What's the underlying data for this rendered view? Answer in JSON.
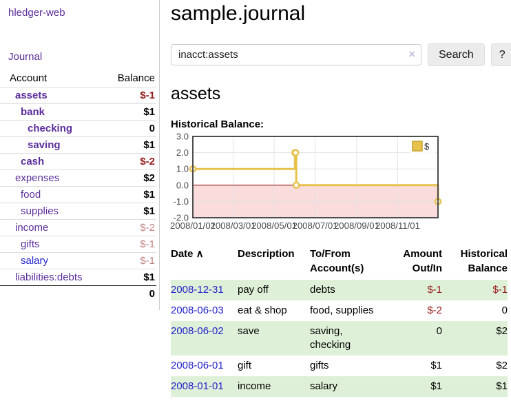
{
  "sidebar": {
    "app_title": "hledger-web",
    "journal_label": "Journal",
    "accounts_table": {
      "col_account": "Account",
      "col_balance": "Balance",
      "rows": [
        {
          "name": "assets",
          "balance": "$-1",
          "level": 1,
          "bold": true,
          "name_color": "purple",
          "bal_style": "neg"
        },
        {
          "name": "bank",
          "balance": "$1",
          "level": 2,
          "bold": true,
          "name_color": "purple",
          "bal_style": "pos"
        },
        {
          "name": "checking",
          "balance": "0",
          "level": 3,
          "bold": true,
          "name_color": "purple",
          "bal_style": "pos"
        },
        {
          "name": "saving",
          "balance": "$1",
          "level": 3,
          "bold": true,
          "name_color": "purple",
          "bal_style": "pos"
        },
        {
          "name": "cash",
          "balance": "$-2",
          "level": 2,
          "bold": true,
          "name_color": "purple",
          "bal_style": "neg"
        },
        {
          "name": "expenses",
          "balance": "$2",
          "level": 1,
          "bold": false,
          "name_color": "purple",
          "bal_style": "pos"
        },
        {
          "name": "food",
          "balance": "$1",
          "level": 2,
          "bold": false,
          "name_color": "purple",
          "bal_style": "pos"
        },
        {
          "name": "supplies",
          "balance": "$1",
          "level": 2,
          "bold": false,
          "name_color": "purple",
          "bal_style": "pos"
        },
        {
          "name": "income",
          "balance": "$-2",
          "level": 1,
          "bold": false,
          "name_color": "purple",
          "bal_style": "muted"
        },
        {
          "name": "gifts",
          "balance": "$-1",
          "level": 2,
          "bold": false,
          "name_color": "purple",
          "bal_style": "muted"
        },
        {
          "name": "salary",
          "balance": "$-1",
          "level": 2,
          "bold": false,
          "name_color": "blue",
          "bal_style": "muted"
        },
        {
          "name": "liabilities:debts",
          "balance": "$1",
          "level": 1,
          "bold": false,
          "name_color": "purple",
          "bal_style": "pos"
        }
      ],
      "total": "0"
    }
  },
  "main": {
    "title": "sample.journal",
    "search": {
      "value": "inacct:assets",
      "clear_icon": "×",
      "search_button_label": "Search",
      "help_button_label": "?"
    },
    "account_heading": "assets",
    "chart_heading": "Historical Balance:"
  },
  "chart_data": {
    "type": "line",
    "subtype": "step-with-markers",
    "title": "Historical Balance:",
    "legend": [
      {
        "label": "$",
        "color": "#e6c14c",
        "position": "top-right"
      }
    ],
    "ylim": [
      -2,
      3
    ],
    "y_ticks": [
      {
        "value": 3,
        "label": "3.0"
      },
      {
        "value": 2,
        "label": "2.0"
      },
      {
        "value": 1,
        "label": "1.0"
      },
      {
        "value": 0,
        "label": "0.0"
      },
      {
        "value": -1,
        "label": "-1.0"
      },
      {
        "value": -2,
        "label": "-2.0"
      }
    ],
    "x_range_days": 365,
    "x_ticks": [
      {
        "label": "2008/01/01",
        "day": 0
      },
      {
        "label": "2008/03/01",
        "day": 60
      },
      {
        "label": "2008/05/01",
        "day": 121
      },
      {
        "label": "2008/07/01",
        "day": 182
      },
      {
        "label": "2008/09/01",
        "day": 244
      },
      {
        "label": "2008/11/01",
        "day": 305
      }
    ],
    "points": [
      {
        "date": "2008-01-01",
        "day": 0,
        "value": 1
      },
      {
        "date": "2008-06-01",
        "day": 152,
        "value": 2
      },
      {
        "date": "2008-06-02",
        "day": 153,
        "value": 2
      },
      {
        "date": "2008-06-03",
        "day": 154,
        "value": 0
      },
      {
        "date": "2008-12-31",
        "day": 365,
        "value": -1
      }
    ],
    "colors": {
      "line": "#e6c14c",
      "marker_fill": "#ffffff",
      "zero_line": "#8b0000",
      "negative_region": "#fadcdc",
      "grid": "#e3e3e3",
      "border": "#4d4d4d",
      "tick_text": "#4a4a4a",
      "legend_square_border": "#c7a32e"
    },
    "grid": true
  },
  "register": {
    "columns": [
      {
        "label": "Date",
        "arrow": "∧",
        "align": "left"
      },
      {
        "label": "Description",
        "align": "left"
      },
      {
        "label": "To/From Account(s)",
        "align": "left"
      },
      {
        "label": "Amount Out/In",
        "align": "right"
      },
      {
        "label": "Historical Balance",
        "align": "right"
      }
    ],
    "rows": [
      {
        "date": "2008-12-31",
        "description": "pay off",
        "accounts": "debts",
        "amount": "$-1",
        "amount_style": "neg",
        "balance": "$-1",
        "balance_style": "neg",
        "shade": true
      },
      {
        "date": "2008-06-03",
        "description": "eat & shop",
        "accounts": "food, supplies",
        "amount": "$-2",
        "amount_style": "neg",
        "balance": "0",
        "balance_style": "pos",
        "shade": false
      },
      {
        "date": "2008-06-02",
        "description": "save",
        "accounts": "saving,\nchecking",
        "amount": "0",
        "amount_style": "pos",
        "balance": "$2",
        "balance_style": "pos",
        "shade": true
      },
      {
        "date": "2008-06-01",
        "description": "gift",
        "accounts": "gifts",
        "amount": "$1",
        "amount_style": "pos",
        "balance": "$2",
        "balance_style": "pos",
        "shade": false
      },
      {
        "date": "2008-01-01",
        "description": "income",
        "accounts": "salary",
        "amount": "$1",
        "amount_style": "pos",
        "balance": "$1",
        "balance_style": "pos",
        "shade": true
      }
    ]
  }
}
